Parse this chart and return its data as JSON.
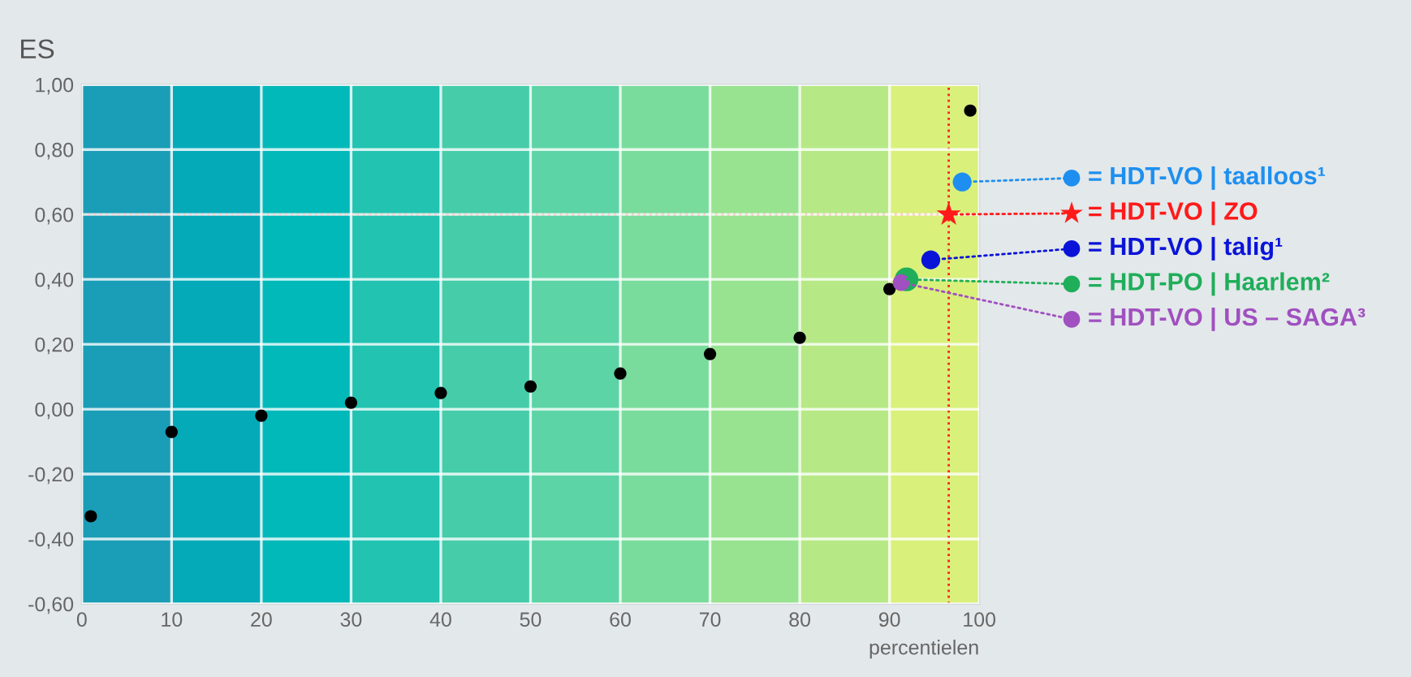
{
  "chart_data": {
    "type": "scatter",
    "ylabel": "ES",
    "xlabel": "percentielen",
    "xlim": [
      0,
      100
    ],
    "ylim": [
      -0.6,
      1.0
    ],
    "xticks": [
      0,
      10,
      20,
      30,
      40,
      50,
      60,
      70,
      80,
      90,
      100
    ],
    "yticks": [
      {
        "value": -0.6,
        "label": "-0,60"
      },
      {
        "value": -0.4,
        "label": "-0,40"
      },
      {
        "value": -0.2,
        "label": "-0,20"
      },
      {
        "value": 0,
        "label": "0,00"
      },
      {
        "value": 0.2,
        "label": "0,20"
      },
      {
        "value": 0.4,
        "label": "0,40"
      },
      {
        "value": 0.6,
        "label": "0,60"
      },
      {
        "value": 0.8,
        "label": "0,80"
      },
      {
        "value": 1.0,
        "label": "1,00"
      }
    ],
    "grid": true,
    "legend": "right",
    "marker": "circle",
    "bands": [
      {
        "axis": "x",
        "from": 0,
        "to": 10,
        "color": "#1a9db6"
      },
      {
        "axis": "x",
        "from": 10,
        "to": 20,
        "color": "#05aab9"
      },
      {
        "axis": "x",
        "from": 20,
        "to": 30,
        "color": "#02b9b9"
      },
      {
        "axis": "x",
        "from": 30,
        "to": 40,
        "color": "#22c3b1"
      },
      {
        "axis": "x",
        "from": 40,
        "to": 50,
        "color": "#46cca9"
      },
      {
        "axis": "x",
        "from": 50,
        "to": 60,
        "color": "#5cd4a6"
      },
      {
        "axis": "x",
        "from": 60,
        "to": 70,
        "color": "#7adc9c"
      },
      {
        "axis": "x",
        "from": 70,
        "to": 80,
        "color": "#98e390"
      },
      {
        "axis": "x",
        "from": 80,
        "to": 90,
        "color": "#b6e986"
      },
      {
        "axis": "x",
        "from": 90,
        "to": 100,
        "color": "#d9f07b"
      }
    ],
    "ref_lines": [
      {
        "axis": "y",
        "value": 0.6,
        "color": "#ff2020",
        "line_style": "dotted"
      },
      {
        "axis": "x",
        "value": 96.6,
        "color": "#ff2020",
        "line_style": "dotted"
      }
    ],
    "series": [
      {
        "color": "#000000",
        "x": [
          1,
          10,
          20,
          30,
          40,
          50,
          60,
          70,
          80,
          90,
          99
        ],
        "values": [
          -0.33,
          -0.07,
          -0.02,
          0.02,
          0.05,
          0.07,
          0.11,
          0.17,
          0.22,
          0.37,
          0.92
        ]
      },
      {
        "name": "= HDT-VO | taalloos¹",
        "color": "#1e8ff0",
        "marker": "circle",
        "x": [
          98.1
        ],
        "values": [
          0.7
        ]
      },
      {
        "name": "= HDT-VO | ZO",
        "color": "#ff1a1a",
        "marker": "star",
        "x": [
          96.6
        ],
        "values": [
          0.6
        ]
      },
      {
        "name": "= HDT-VO | talig¹",
        "color": "#0a14d8",
        "marker": "circle",
        "x": [
          94.6
        ],
        "values": [
          0.46
        ]
      },
      {
        "name": "= HDT-PO | Haarlem²",
        "color": "#1fae5a",
        "marker": "circle",
        "x": [
          91.9
        ],
        "values": [
          0.4
        ]
      },
      {
        "name": "= HDT-VO | US – SAGA³",
        "color": "#a050c0",
        "marker": "circle",
        "x": [
          91.3
        ],
        "values": [
          0.39
        ]
      }
    ]
  }
}
